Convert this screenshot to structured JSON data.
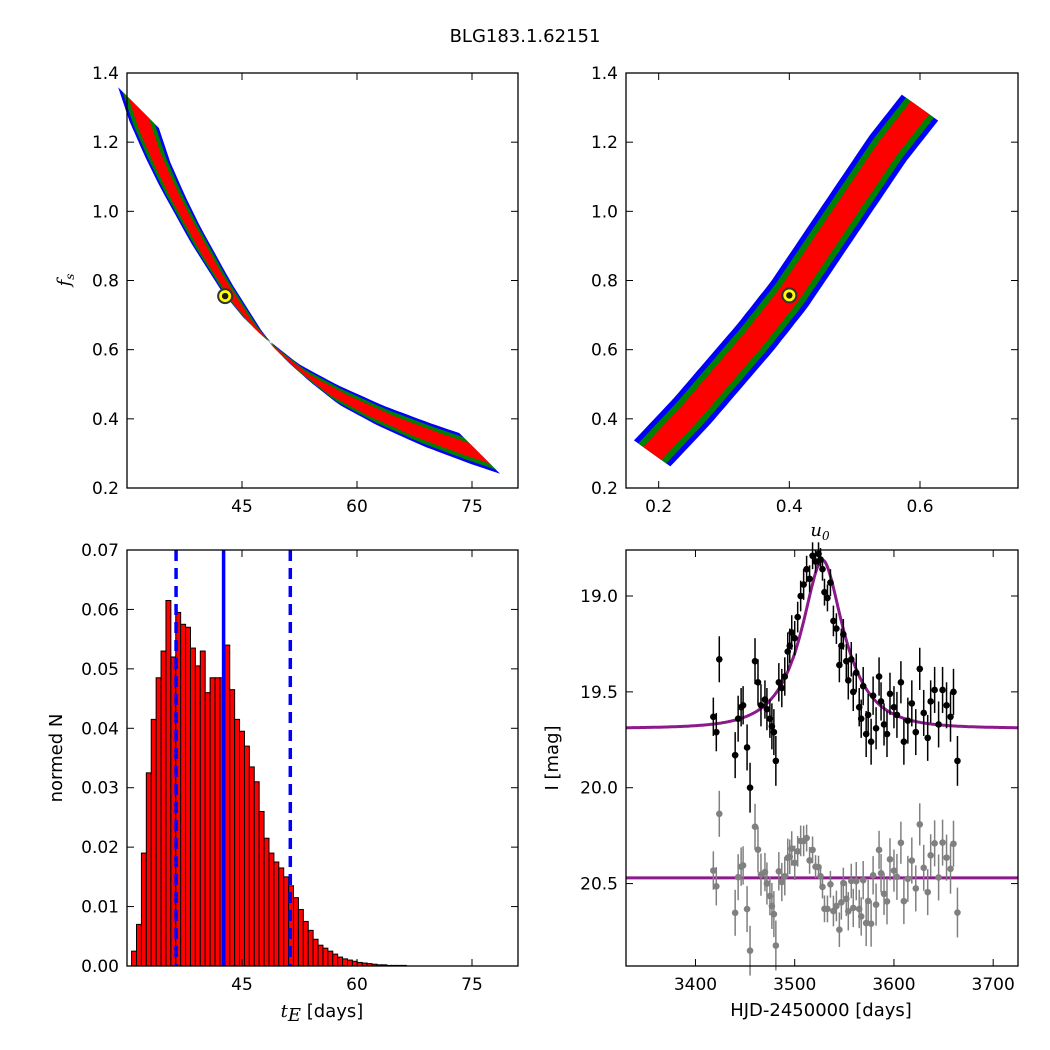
{
  "figure_title": "BLG183.1.62151",
  "chart_data": [
    {
      "type": "heatmap",
      "panel": "top-left",
      "xlabel": "",
      "ylabel": "f_s",
      "ylabel_main": "f",
      "ylabel_sub": "s",
      "xlim": [
        30,
        81
      ],
      "ylim": [
        0.2,
        1.4
      ],
      "x_ticks": [
        45,
        60,
        75
      ],
      "y_ticks": [
        0.2,
        0.4,
        0.6,
        0.8,
        1.0,
        1.2,
        1.4
      ],
      "x_tick_labels": [
        "45",
        "60",
        "75"
      ],
      "y_tick_labels": [
        "0.2",
        "0.4",
        "0.6",
        "0.8",
        "1.0",
        "1.2",
        "1.4"
      ],
      "curve_x": [
        31.5,
        33.0,
        35.0,
        37.0,
        39.0,
        41.0,
        43.0,
        45.0,
        48.0,
        51.0,
        55.0,
        60.0,
        66.0,
        72.0,
        76.0
      ],
      "curve_y": [
        1.3,
        1.2,
        1.1,
        1.01,
        0.93,
        0.85,
        0.78,
        0.71,
        0.63,
        0.57,
        0.5,
        0.44,
        0.38,
        0.33,
        0.3
      ],
      "contour_colors": [
        "#0000ff",
        "#008000",
        "#ff0000"
      ],
      "best_fit": {
        "x": 42.8,
        "y": 0.755
      },
      "best_fit_marker": {
        "face": "#ffff00",
        "edge": "#333333"
      }
    },
    {
      "type": "heatmap",
      "panel": "top-right",
      "xlabel": "u_0",
      "xlabel_main": "u",
      "xlabel_sub": "0",
      "ylabel": "",
      "xlim": [
        0.15,
        0.75
      ],
      "ylim": [
        0.2,
        1.4
      ],
      "x_ticks": [
        0.2,
        0.4,
        0.6
      ],
      "y_ticks": [
        0.2,
        0.4,
        0.6,
        0.8,
        1.0,
        1.2,
        1.4
      ],
      "x_tick_labels": [
        "0.2",
        "0.4",
        "0.6"
      ],
      "y_tick_labels": [
        "0.2",
        "0.4",
        "0.6",
        "0.8",
        "1.0",
        "1.2",
        "1.4"
      ],
      "curve_x": [
        0.19,
        0.25,
        0.3,
        0.35,
        0.4,
        0.45,
        0.5,
        0.55,
        0.6
      ],
      "curve_y": [
        0.3,
        0.42,
        0.53,
        0.64,
        0.76,
        0.9,
        1.04,
        1.18,
        1.3
      ],
      "contour_colors": [
        "#0000ff",
        "#008000",
        "#ff0000"
      ],
      "best_fit": {
        "x": 0.4,
        "y": 0.757
      },
      "best_fit_marker": {
        "face": "#ffff00",
        "edge": "#333333"
      }
    },
    {
      "type": "bar",
      "panel": "bottom-left",
      "xlabel": "t_E [days]",
      "xlabel_main": "t",
      "xlabel_sub": "E",
      "xlabel_units": " [days]",
      "ylabel": "normed N",
      "xlim": [
        30,
        81
      ],
      "ylim": [
        0,
        0.07
      ],
      "x_ticks": [
        45,
        60,
        75
      ],
      "y_ticks": [
        0.0,
        0.01,
        0.02,
        0.03,
        0.04,
        0.05,
        0.06,
        0.07
      ],
      "x_tick_labels": [
        "45",
        "60",
        "75"
      ],
      "y_tick_labels": [
        "0.00",
        "0.01",
        "0.02",
        "0.03",
        "0.04",
        "0.05",
        "0.06",
        "0.07"
      ],
      "bin_start": 30.6,
      "bin_width": 0.64,
      "values": [
        0.0025,
        0.007,
        0.019,
        0.0325,
        0.0415,
        0.0485,
        0.053,
        0.0615,
        0.052,
        0.0595,
        0.0575,
        0.057,
        0.0535,
        0.0505,
        0.053,
        0.046,
        0.0485,
        0.0485,
        0.0485,
        0.054,
        0.0465,
        0.0415,
        0.0395,
        0.037,
        0.0335,
        0.031,
        0.026,
        0.0215,
        0.019,
        0.0175,
        0.0165,
        0.015,
        0.0135,
        0.0115,
        0.0095,
        0.0075,
        0.006,
        0.0045,
        0.0035,
        0.003,
        0.0025,
        0.002,
        0.0015,
        0.0012,
        0.001,
        0.0008,
        0.0006,
        0.0005,
        0.0004,
        0.0003,
        0.0002,
        0.0002,
        0.0001,
        0.0001,
        0.0001,
        0.0001
      ],
      "bar_color": "#ff0000",
      "median": 42.6,
      "interval": [
        36.4,
        51.3
      ],
      "line_color": "#0000ff"
    },
    {
      "type": "scatter",
      "panel": "bottom-right",
      "xlabel": "HJD-2450000 [days]",
      "ylabel": "I [mag]",
      "xlim": [
        3330,
        3725
      ],
      "ylim": [
        20.93,
        18.76
      ],
      "x_ticks": [
        3400,
        3500,
        3600,
        3700
      ],
      "y_ticks": [
        19.0,
        19.5,
        20.0,
        20.5
      ],
      "x_tick_labels": [
        "3400",
        "3500",
        "3600",
        "3700"
      ],
      "y_tick_labels": [
        "19.0",
        "19.5",
        "20.0",
        "20.5"
      ],
      "model": {
        "baseline": 19.69,
        "t0": 3528,
        "tE": 42.8,
        "u0": 0.4,
        "fs": 0.755,
        "color": "#8b1a8b"
      },
      "residual_baseline": 20.47,
      "data_color": "#000000",
      "residual_color": "#808080",
      "points": [
        [
          3418,
          19.63,
          0.1
        ],
        [
          3421,
          19.71,
          0.1
        ],
        [
          3424,
          19.33,
          0.12
        ],
        [
          3440,
          19.83,
          0.12
        ],
        [
          3443,
          19.64,
          0.12
        ],
        [
          3446,
          19.58,
          0.1
        ],
        [
          3448,
          19.57,
          0.1
        ],
        [
          3452,
          19.79,
          0.12
        ],
        [
          3455,
          20.0,
          0.13
        ],
        [
          3460,
          19.34,
          0.12
        ],
        [
          3463,
          19.45,
          0.12
        ],
        [
          3466,
          19.57,
          0.11
        ],
        [
          3470,
          19.54,
          0.1
        ],
        [
          3472,
          19.59,
          0.11
        ],
        [
          3475,
          19.64,
          0.1
        ],
        [
          3477,
          19.68,
          0.12
        ],
        [
          3479,
          19.71,
          0.12
        ],
        [
          3481,
          19.86,
          0.13
        ],
        [
          3484,
          19.45,
          0.1
        ],
        [
          3487,
          19.48,
          0.1
        ],
        [
          3490,
          19.42,
          0.1
        ],
        [
          3493,
          19.29,
          0.1
        ],
        [
          3495,
          19.26,
          0.09
        ],
        [
          3497,
          19.19,
          0.09
        ],
        [
          3500,
          19.22,
          0.09
        ],
        [
          3503,
          19.11,
          0.08
        ],
        [
          3506,
          19.0,
          0.08
        ],
        [
          3509,
          18.94,
          0.08
        ],
        [
          3512,
          18.86,
          0.07
        ],
        [
          3515,
          18.91,
          0.07
        ],
        [
          3518,
          18.79,
          0.07
        ],
        [
          3521,
          18.82,
          0.06
        ],
        [
          3524,
          18.78,
          0.06
        ],
        [
          3526,
          18.81,
          0.06
        ],
        [
          3528,
          18.86,
          0.06
        ],
        [
          3530,
          18.98,
          0.07
        ],
        [
          3533,
          19.01,
          0.07
        ],
        [
          3536,
          18.93,
          0.07
        ],
        [
          3539,
          19.13,
          0.08
        ],
        [
          3542,
          19.17,
          0.08
        ],
        [
          3545,
          19.36,
          0.09
        ],
        [
          3547,
          19.26,
          0.09
        ],
        [
          3549,
          19.2,
          0.08
        ],
        [
          3552,
          19.34,
          0.09
        ],
        [
          3554,
          19.44,
          0.1
        ],
        [
          3557,
          19.33,
          0.09
        ],
        [
          3559,
          19.5,
          0.1
        ],
        [
          3562,
          19.4,
          0.1
        ],
        [
          3565,
          19.58,
          0.1
        ],
        [
          3567,
          19.64,
          0.1
        ],
        [
          3569,
          19.47,
          0.1
        ],
        [
          3572,
          19.72,
          0.12
        ],
        [
          3574,
          19.62,
          0.11
        ],
        [
          3577,
          19.76,
          0.12
        ],
        [
          3579,
          19.52,
          0.1
        ],
        [
          3582,
          19.69,
          0.11
        ],
        [
          3585,
          19.42,
          0.1
        ],
        [
          3587,
          19.55,
          0.1
        ],
        [
          3590,
          19.67,
          0.11
        ],
        [
          3593,
          19.72,
          0.12
        ],
        [
          3596,
          19.51,
          0.11
        ],
        [
          3600,
          19.58,
          0.11
        ],
        [
          3603,
          19.62,
          0.12
        ],
        [
          3607,
          19.45,
          0.11
        ],
        [
          3610,
          19.76,
          0.12
        ],
        [
          3614,
          19.65,
          0.12
        ],
        [
          3618,
          19.56,
          0.12
        ],
        [
          3622,
          19.71,
          0.12
        ],
        [
          3626,
          19.38,
          0.11
        ],
        [
          3630,
          19.61,
          0.12
        ],
        [
          3634,
          19.74,
          0.12
        ],
        [
          3637,
          19.55,
          0.11
        ],
        [
          3641,
          19.49,
          0.12
        ],
        [
          3645,
          19.67,
          0.12
        ],
        [
          3649,
          19.49,
          0.12
        ],
        [
          3653,
          19.57,
          0.12
        ],
        [
          3657,
          19.63,
          0.13
        ],
        [
          3660,
          19.5,
          0.12
        ],
        [
          3664,
          19.86,
          0.13
        ]
      ]
    }
  ]
}
